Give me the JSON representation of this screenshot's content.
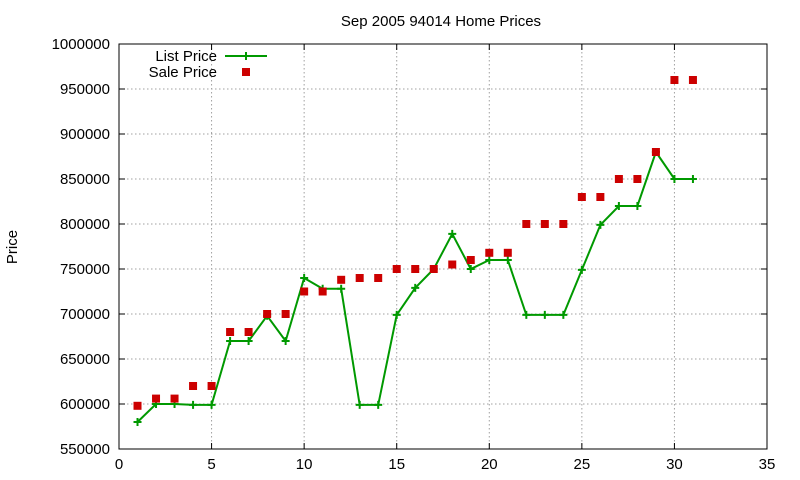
{
  "chart_data": {
    "type": "line",
    "title": "Sep 2005 94014 Home Prices",
    "xlabel": "",
    "ylabel": "Price",
    "xlim": [
      0,
      35
    ],
    "ylim": [
      550000,
      1000000
    ],
    "xticks": [
      0,
      5,
      10,
      15,
      20,
      25,
      30,
      35
    ],
    "yticks": [
      550000,
      600000,
      650000,
      700000,
      750000,
      800000,
      850000,
      900000,
      950000,
      1000000
    ],
    "grid": true,
    "legend_position": "top-left",
    "series": [
      {
        "name": "List Price",
        "style": "line-with-plus-markers",
        "color": "#009900",
        "x": [
          1,
          2,
          3,
          4,
          5,
          6,
          7,
          8,
          9,
          10,
          11,
          12,
          13,
          14,
          15,
          16,
          17,
          18,
          19,
          20,
          21,
          22,
          23,
          24,
          25,
          26,
          27,
          28,
          29,
          30,
          31
        ],
        "y": [
          580000,
          600000,
          600000,
          599000,
          599000,
          670000,
          670000,
          698000,
          670000,
          740000,
          728000,
          728000,
          599000,
          599000,
          699000,
          729000,
          750000,
          789000,
          750000,
          760000,
          760000,
          699000,
          699000,
          699000,
          749000,
          799000,
          820000,
          820000,
          880000,
          850000,
          850000
        ]
      },
      {
        "name": "Sale Price",
        "style": "square-markers",
        "color": "#cc0000",
        "x": [
          1,
          2,
          3,
          4,
          5,
          6,
          7,
          8,
          9,
          10,
          11,
          12,
          13,
          14,
          15,
          16,
          17,
          18,
          19,
          20,
          21,
          22,
          23,
          24,
          25,
          26,
          27,
          28,
          29,
          30,
          31
        ],
        "y": [
          598000,
          606000,
          606000,
          620000,
          620000,
          680000,
          680000,
          700000,
          700000,
          725000,
          725000,
          738000,
          740000,
          740000,
          750000,
          750000,
          750000,
          755000,
          760000,
          768000,
          768000,
          800000,
          800000,
          800000,
          830000,
          830000,
          850000,
          850000,
          880000,
          960000,
          960000
        ]
      }
    ]
  }
}
